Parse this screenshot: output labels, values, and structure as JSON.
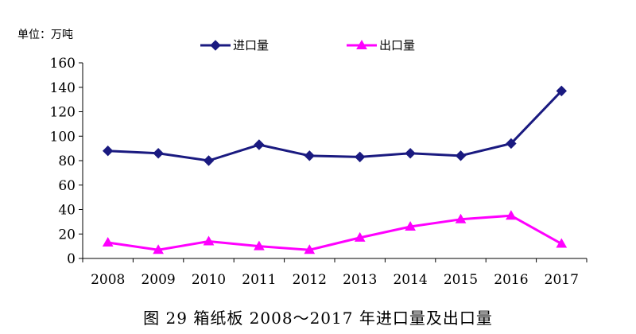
{
  "colors": {
    "import": "#1a1a80",
    "export": "#ff00ff"
  },
  "chart_data": {
    "type": "line",
    "unit_label": "单位：万吨",
    "caption": "图 29  箱纸板 2008～2017 年进口量及出口量",
    "x": [
      "2008",
      "2009",
      "2010",
      "2011",
      "2012",
      "2013",
      "2014",
      "2015",
      "2016",
      "2017"
    ],
    "ylim": [
      0,
      160
    ],
    "yticks": [
      "0",
      "20",
      "40",
      "60",
      "80",
      "100",
      "120",
      "140",
      "160"
    ],
    "grid": false,
    "legend_position": "top-center",
    "series": [
      {
        "name": "进口量",
        "marker": "diamond",
        "color": "#1a1a80",
        "values": [
          88,
          86,
          80,
          93,
          84,
          83,
          86,
          84,
          94,
          137
        ]
      },
      {
        "name": "出口量",
        "marker": "triangle",
        "color": "#ff00ff",
        "values": [
          13,
          7,
          14,
          10,
          7,
          17,
          26,
          32,
          35,
          12
        ]
      }
    ]
  }
}
